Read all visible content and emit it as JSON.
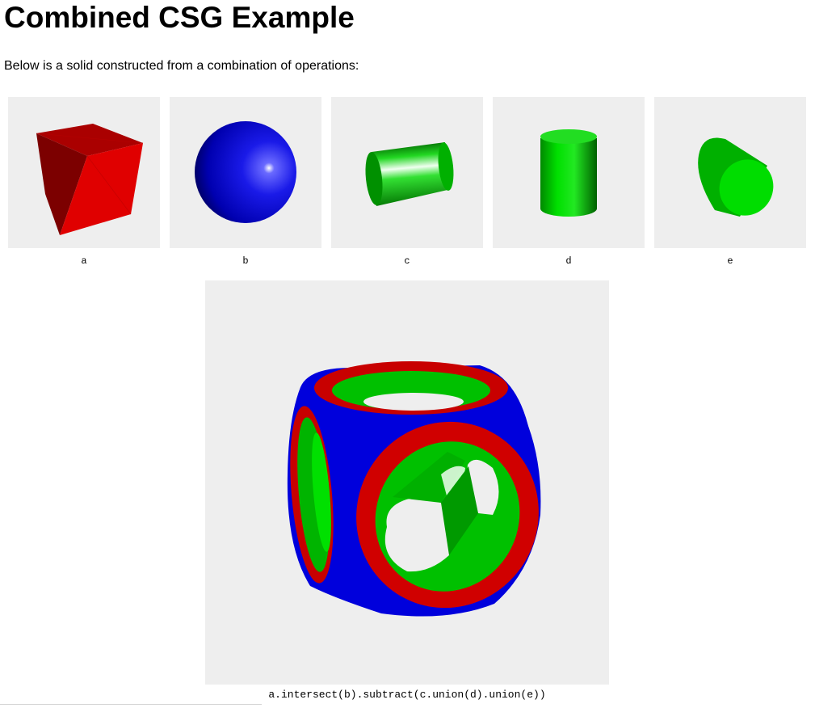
{
  "page": {
    "title": "Combined CSG Example",
    "intro": "Below is a solid constructed from a combination of operations:"
  },
  "thumbnails": [
    {
      "caption": "a",
      "shape": "cube",
      "color": "#e00000"
    },
    {
      "caption": "b",
      "shape": "sphere",
      "color": "#0000e0"
    },
    {
      "caption": "c",
      "shape": "cylinder",
      "color": "#00e000"
    },
    {
      "caption": "d",
      "shape": "cylinder",
      "color": "#00e000"
    },
    {
      "caption": "e",
      "shape": "cylinder",
      "color": "#00e000"
    }
  ],
  "result": {
    "caption": "a.intersect(b).subtract(c.union(d).union(e))",
    "colors": {
      "cube": "#e00000",
      "sphere": "#0000e0",
      "cylinders": "#00e000"
    }
  },
  "viewport_background": "#eeeeee"
}
